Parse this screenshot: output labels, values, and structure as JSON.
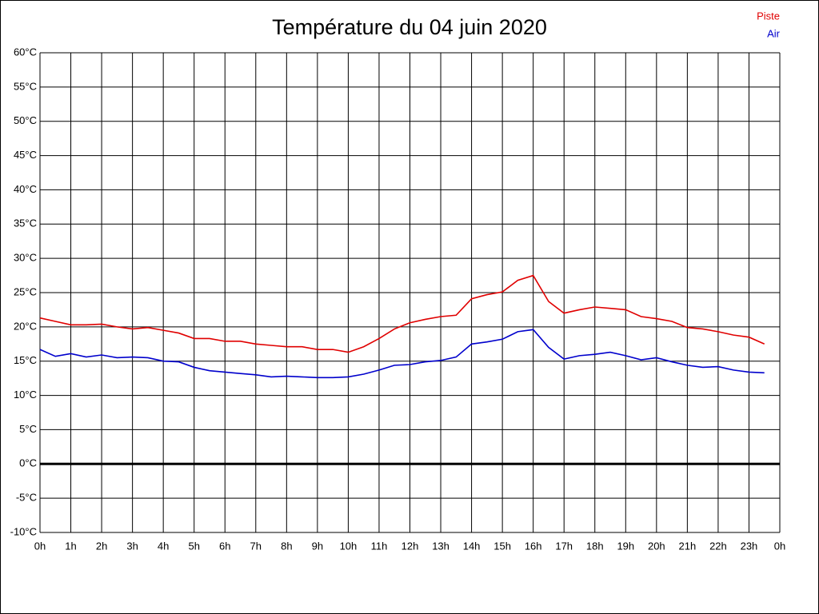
{
  "chart_data": {
    "type": "line",
    "title": "Température du 04 juin 2020",
    "x": [
      0,
      0.5,
      1,
      1.5,
      2,
      2.5,
      3,
      3.5,
      4,
      4.5,
      5,
      5.5,
      6,
      6.5,
      7,
      7.5,
      8,
      8.5,
      9,
      9.5,
      10,
      10.5,
      11,
      11.5,
      12,
      12.5,
      13,
      13.5,
      14,
      14.5,
      15,
      15.5,
      16,
      16.5,
      17,
      17.5,
      18,
      18.5,
      19,
      19.5,
      20,
      20.5,
      21,
      21.5,
      22,
      22.5,
      23,
      23.5
    ],
    "series": [
      {
        "name": "Piste",
        "color": "#e00000",
        "values": [
          21.3,
          20.8,
          20.3,
          20.3,
          20.4,
          20.0,
          19.7,
          19.9,
          19.5,
          19.1,
          18.3,
          18.3,
          17.9,
          17.9,
          17.5,
          17.3,
          17.1,
          17.1,
          16.7,
          16.7,
          16.3,
          17.1,
          18.3,
          19.7,
          20.6,
          21.1,
          21.5,
          21.7,
          24.1,
          24.7,
          25.1,
          26.8,
          27.5,
          23.7,
          22.0,
          22.5,
          22.9,
          22.7,
          22.5,
          21.5,
          21.2,
          20.8,
          19.9,
          19.7,
          19.3,
          18.8,
          18.5,
          17.5
        ]
      },
      {
        "name": "Air",
        "color": "#0000cc",
        "values": [
          16.7,
          15.7,
          16.1,
          15.6,
          15.9,
          15.5,
          15.6,
          15.5,
          15.0,
          14.9,
          14.1,
          13.6,
          13.4,
          13.2,
          13.0,
          12.7,
          12.8,
          12.7,
          12.6,
          12.6,
          12.7,
          13.1,
          13.7,
          14.4,
          14.5,
          14.9,
          15.1,
          15.6,
          17.5,
          17.8,
          18.2,
          19.3,
          19.6,
          17.0,
          15.3,
          15.8,
          16.0,
          16.3,
          15.8,
          15.2,
          15.5,
          14.9,
          14.4,
          14.1,
          14.2,
          13.7,
          13.4,
          13.3
        ]
      }
    ],
    "xlim": [
      0,
      24
    ],
    "xticks": [
      {
        "value": 0,
        "label": "0h"
      },
      {
        "value": 1,
        "label": "1h"
      },
      {
        "value": 2,
        "label": "2h"
      },
      {
        "value": 3,
        "label": "3h"
      },
      {
        "value": 4,
        "label": "4h"
      },
      {
        "value": 5,
        "label": "5h"
      },
      {
        "value": 6,
        "label": "6h"
      },
      {
        "value": 7,
        "label": "7h"
      },
      {
        "value": 8,
        "label": "8h"
      },
      {
        "value": 9,
        "label": "9h"
      },
      {
        "value": 10,
        "label": "10h"
      },
      {
        "value": 11,
        "label": "11h"
      },
      {
        "value": 12,
        "label": "12h"
      },
      {
        "value": 13,
        "label": "13h"
      },
      {
        "value": 14,
        "label": "14h"
      },
      {
        "value": 15,
        "label": "15h"
      },
      {
        "value": 16,
        "label": "16h"
      },
      {
        "value": 17,
        "label": "17h"
      },
      {
        "value": 18,
        "label": "18h"
      },
      {
        "value": 19,
        "label": "19h"
      },
      {
        "value": 20,
        "label": "20h"
      },
      {
        "value": 21,
        "label": "21h"
      },
      {
        "value": 22,
        "label": "22h"
      },
      {
        "value": 23,
        "label": "23h"
      },
      {
        "value": 24,
        "label": "0h"
      }
    ],
    "ylim": [
      -10,
      60
    ],
    "yticks": [
      {
        "value": -10,
        "label": "-10°C"
      },
      {
        "value": -5,
        "label": "-5°C"
      },
      {
        "value": 0,
        "label": "0°C"
      },
      {
        "value": 5,
        "label": "5°C"
      },
      {
        "value": 10,
        "label": "10°C"
      },
      {
        "value": 15,
        "label": "15°C"
      },
      {
        "value": 20,
        "label": "20°C"
      },
      {
        "value": 25,
        "label": "25°C"
      },
      {
        "value": 30,
        "label": "30°C"
      },
      {
        "value": 35,
        "label": "35°C"
      },
      {
        "value": 40,
        "label": "40°C"
      },
      {
        "value": 45,
        "label": "45°C"
      },
      {
        "value": 50,
        "label": "50°C"
      },
      {
        "value": 55,
        "label": "55°C"
      },
      {
        "value": 60,
        "label": "60°C"
      }
    ],
    "grid": true,
    "legend": "top-right"
  }
}
